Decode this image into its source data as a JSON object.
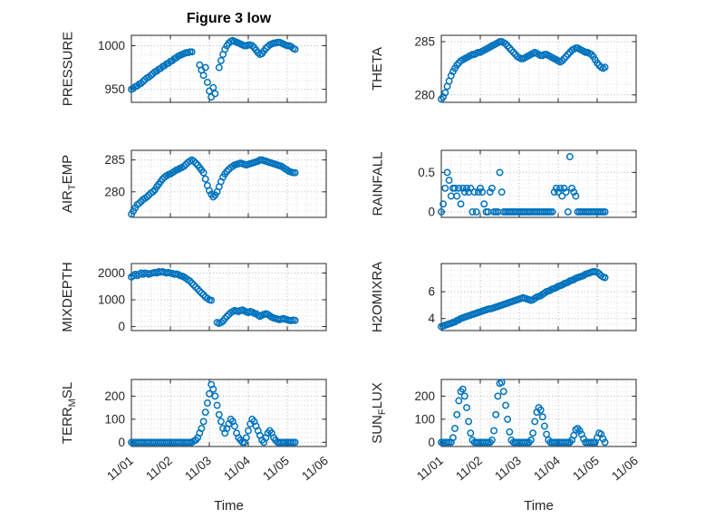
{
  "figure": {
    "title": "Figure 3 low",
    "xlabel": "Time",
    "colors": {
      "marker": "#0072BD",
      "axis": "#262626",
      "grid": "#b5b5b5",
      "minor_grid": "#dcdcdc"
    }
  },
  "x_axis": {
    "lim": [
      0,
      5
    ],
    "ticks": [
      0,
      1,
      2,
      3,
      4,
      5
    ],
    "labels": [
      "11/01",
      "11/02",
      "11/03",
      "11/04",
      "11/05",
      "11/06"
    ],
    "minor_step": 0.25
  },
  "chart_data": [
    {
      "type": "scatter",
      "name": "PRESSURE",
      "row": 0,
      "col": 0,
      "ylabel": {
        "pre": "PRESSURE",
        "sub": "",
        "post": ""
      },
      "ylim": [
        935,
        1012
      ],
      "yticks": [
        950,
        1000
      ],
      "ytick_labels": [
        "950",
        "1000"
      ],
      "yminor": 10,
      "t": [
        0,
        0.05,
        0.1,
        0.15,
        0.2,
        0.25,
        0.3,
        0.35,
        0.4,
        0.45,
        0.5,
        0.55,
        0.6,
        0.65,
        0.7,
        0.75,
        0.8,
        0.85,
        0.9,
        0.95,
        1,
        1.05,
        1.1,
        1.15,
        1.2,
        1.25,
        1.3,
        1.35,
        1.4,
        1.45,
        1.5,
        1.55,
        1.75,
        1.8,
        1.85,
        1.9,
        1.95,
        2,
        2.05,
        2.1,
        2.15,
        2.25,
        2.3,
        2.35,
        2.4,
        2.45,
        2.5,
        2.55,
        2.6,
        2.65,
        2.7,
        2.75,
        2.8,
        2.85,
        2.9,
        2.95,
        3,
        3.05,
        3.1,
        3.15,
        3.2,
        3.25,
        3.3,
        3.35,
        3.4,
        3.45,
        3.5,
        3.55,
        3.6,
        3.65,
        3.7,
        3.75,
        3.8,
        3.85,
        3.9,
        3.95,
        4,
        4.05,
        4.1,
        4.15,
        4.2
      ],
      "y": [
        950,
        951,
        953,
        954,
        956,
        957,
        959,
        961,
        963,
        964,
        966,
        968,
        970,
        971,
        973,
        974,
        976,
        977,
        979,
        980,
        982,
        983,
        985,
        986,
        988,
        989,
        990,
        991,
        992,
        992,
        993,
        993,
        978,
        972,
        966,
        975,
        958,
        948,
        941,
        952,
        945,
        975,
        983,
        990,
        996,
        1000,
        1003,
        1005,
        1006,
        1005,
        1004,
        1003,
        1002,
        1001,
        1000,
        1000,
        1001,
        1001,
        1000,
        998,
        995,
        992,
        990,
        991,
        994,
        997,
        999,
        1001,
        1002,
        1003,
        1003,
        1004,
        1004,
        1003,
        1002,
        1001,
        1000,
        1000,
        999,
        997,
        996
      ]
    },
    {
      "type": "scatter",
      "name": "THETA",
      "row": 0,
      "col": 1,
      "ylabel": {
        "pre": "THETA",
        "sub": "",
        "post": ""
      },
      "ylim": [
        279.3,
        285.6
      ],
      "yticks": [
        280,
        285
      ],
      "ytick_labels": [
        "280",
        "285"
      ],
      "yminor": 1,
      "t_start": 0,
      "t_step": 0.05,
      "y": [
        279.6,
        279.8,
        280.2,
        280.8,
        281.3,
        281.8,
        282.2,
        282.5,
        282.8,
        283,
        283.2,
        283.3,
        283.4,
        283.5,
        283.6,
        283.7,
        283.8,
        283.8,
        283.9,
        284,
        284,
        284.1,
        284.2,
        284.3,
        284.4,
        284.5,
        284.6,
        284.7,
        284.8,
        284.9,
        285,
        285,
        284.9,
        284.8,
        284.6,
        284.4,
        284.2,
        284,
        283.8,
        283.6,
        283.5,
        283.4,
        283.4,
        283.5,
        283.6,
        283.7,
        283.8,
        283.9,
        284,
        283.9,
        283.8,
        283.7,
        283.7,
        283.8,
        283.8,
        283.7,
        283.6,
        283.5,
        283.4,
        283.3,
        283.2,
        283.1,
        283.2,
        283.4,
        283.6,
        283.8,
        284,
        284.2,
        284.3,
        284.4,
        284.4,
        284.3,
        284.2,
        284.1,
        284,
        284,
        283.9,
        283.8,
        283.6,
        283.3,
        283,
        282.8,
        282.6,
        282.5,
        282.6
      ]
    },
    {
      "type": "scatter",
      "name": "AIR_TEMP",
      "row": 1,
      "col": 0,
      "ylabel": {
        "pre": "AIR",
        "sub": "T",
        "post": "EMP"
      },
      "ylim": [
        276,
        286.5
      ],
      "yticks": [
        280,
        285
      ],
      "ytick_labels": [
        "280",
        "285"
      ],
      "yminor": 1,
      "t_start": 0,
      "t_step": 0.05,
      "y": [
        276.5,
        277,
        277.5,
        278,
        278.2,
        278.5,
        278.8,
        279,
        279.2,
        279.5,
        279.8,
        280,
        280.3,
        280.8,
        281.2,
        281.6,
        282,
        282.3,
        282.5,
        282.7,
        282.8,
        283,
        283.2,
        283.4,
        283.5,
        283.7,
        283.8,
        284,
        284.3,
        284.6,
        284.8,
        285,
        284.8,
        284.5,
        284.2,
        283.8,
        283.4,
        283,
        282,
        281,
        280.2,
        279.6,
        279.2,
        279.5,
        280,
        280.8,
        281.6,
        282.3,
        282.8,
        283.2,
        283.5,
        283.8,
        284,
        284.2,
        284.3,
        284.4,
        284.5,
        284.4,
        284.3,
        284.2,
        284.3,
        284.4,
        284.5,
        284.6,
        284.7,
        284.8,
        285,
        285,
        284.9,
        284.8,
        284.7,
        284.6,
        284.5,
        284.4,
        284.3,
        284.2,
        284.1,
        284,
        283.8,
        283.6,
        283.4,
        283.2,
        283.1,
        283,
        283
      ]
    },
    {
      "type": "scatter",
      "name": "RAINFALL",
      "row": 1,
      "col": 1,
      "ylabel": {
        "pre": "RAINFALL",
        "sub": "",
        "post": ""
      },
      "ylim": [
        -0.07,
        0.78
      ],
      "yticks": [
        0,
        0.5
      ],
      "ytick_labels": [
        "0",
        "0.5"
      ],
      "yminor": 0.1,
      "t_start": 0,
      "t_step": 0.05,
      "y": [
        0,
        0.1,
        0.3,
        0.5,
        0.4,
        0.2,
        0.3,
        0.3,
        0.2,
        0.3,
        0.1,
        0.3,
        0.25,
        0.3,
        0.25,
        0.3,
        0,
        0.25,
        0,
        0.25,
        0.3,
        0.25,
        0.1,
        0,
        0,
        0.25,
        0.3,
        0,
        0,
        0,
        0.5,
        0.25,
        0,
        0,
        0,
        0,
        0,
        0,
        0,
        0,
        0,
        0,
        0,
        0,
        0,
        0,
        0,
        0,
        0,
        0,
        0,
        0,
        0,
        0,
        0,
        0,
        0,
        0,
        0.25,
        0.3,
        0.25,
        0.3,
        0.2,
        0.3,
        0.25,
        0,
        0.7,
        0.3,
        0.25,
        0.2,
        0,
        0,
        0,
        0,
        0,
        0,
        0,
        0,
        0,
        0,
        0,
        0,
        0,
        0,
        0
      ]
    },
    {
      "type": "scatter",
      "name": "MIXDEPTH",
      "row": 2,
      "col": 0,
      "ylabel": {
        "pre": "MIXDEPTH",
        "sub": "",
        "post": ""
      },
      "ylim": [
        -150,
        2350
      ],
      "yticks": [
        0,
        1000,
        2000
      ],
      "ytick_labels": [
        "0",
        "1000",
        "2000"
      ],
      "yminor": 200,
      "t": [
        0,
        0.05,
        0.1,
        0.15,
        0.2,
        0.25,
        0.3,
        0.35,
        0.4,
        0.45,
        0.5,
        0.55,
        0.6,
        0.65,
        0.7,
        0.75,
        0.8,
        0.85,
        0.9,
        0.95,
        1,
        1.05,
        1.1,
        1.15,
        1.2,
        1.25,
        1.3,
        1.35,
        1.4,
        1.45,
        1.5,
        1.55,
        1.6,
        1.65,
        1.7,
        1.75,
        1.8,
        1.85,
        1.9,
        1.95,
        2,
        2.05,
        2.2,
        2.25,
        2.3,
        2.35,
        2.4,
        2.45,
        2.5,
        2.55,
        2.6,
        2.65,
        2.7,
        2.75,
        2.8,
        2.85,
        2.9,
        2.95,
        3,
        3.05,
        3.1,
        3.15,
        3.2,
        3.25,
        3.3,
        3.35,
        3.4,
        3.45,
        3.5,
        3.55,
        3.6,
        3.65,
        3.7,
        3.75,
        3.8,
        3.85,
        3.9,
        3.95,
        4,
        4.05,
        4.1,
        4.15,
        4.2
      ],
      "y": [
        1850,
        1900,
        1950,
        1900,
        1950,
        2000,
        1950,
        2000,
        1980,
        1950,
        1980,
        2000,
        2020,
        2000,
        2050,
        2030,
        2050,
        2020,
        2000,
        2020,
        2000,
        1980,
        1950,
        1960,
        1940,
        1900,
        1880,
        1850,
        1800,
        1750,
        1700,
        1620,
        1550,
        1480,
        1400,
        1320,
        1250,
        1180,
        1100,
        1050,
        1000,
        980,
        150,
        120,
        150,
        200,
        300,
        380,
        450,
        520,
        560,
        600,
        580,
        560,
        600,
        620,
        580,
        550,
        520,
        560,
        540,
        500,
        480,
        420,
        380,
        420,
        450,
        480,
        450,
        400,
        350,
        320,
        300,
        280,
        260,
        280,
        300,
        280,
        250,
        230,
        220,
        240,
        230
      ]
    },
    {
      "type": "scatter",
      "name": "H2OMIXRA",
      "row": 2,
      "col": 1,
      "ylabel": {
        "pre": "H2OMIXRA",
        "sub": "",
        "post": ""
      },
      "ylim": [
        3.1,
        8.1
      ],
      "yticks": [
        4,
        6
      ],
      "ytick_labels": [
        "4",
        "6"
      ],
      "yminor": 0.4,
      "t_start": 0,
      "t_step": 0.05,
      "y": [
        3.4,
        3.45,
        3.5,
        3.55,
        3.6,
        3.65,
        3.7,
        3.75,
        3.85,
        3.9,
        4,
        4.05,
        4.1,
        4.15,
        4.2,
        4.25,
        4.3,
        4.35,
        4.4,
        4.45,
        4.5,
        4.55,
        4.6,
        4.65,
        4.7,
        4.72,
        4.75,
        4.8,
        4.85,
        4.9,
        4.95,
        5,
        5.05,
        5.1,
        5.15,
        5.2,
        5.25,
        5.3,
        5.35,
        5.4,
        5.45,
        5.5,
        5.55,
        5.5,
        5.45,
        5.4,
        5.35,
        5.4,
        5.5,
        5.6,
        5.65,
        5.7,
        5.8,
        5.9,
        6,
        6.05,
        6.1,
        6.2,
        6.25,
        6.3,
        6.4,
        6.45,
        6.5,
        6.6,
        6.65,
        6.7,
        6.8,
        6.85,
        6.9,
        7,
        7.05,
        7.1,
        7.15,
        7.2,
        7.3,
        7.35,
        7.4,
        7.45,
        7.5,
        7.5,
        7.45,
        7.35,
        7.2,
        7.1,
        7.05
      ]
    },
    {
      "type": "scatter",
      "name": "TERR_MSL",
      "row": 3,
      "col": 0,
      "ylabel": {
        "pre": "TERR",
        "sub": "M",
        "post": "SL"
      },
      "ylim": [
        -18,
        272
      ],
      "yticks": [
        0,
        100,
        200
      ],
      "ytick_labels": [
        "0",
        "100",
        "200"
      ],
      "yminor": 20,
      "t_start": 0,
      "t_step": 0.05,
      "y": [
        0,
        0,
        0,
        0,
        0,
        0,
        0,
        0,
        0,
        0,
        0,
        0,
        0,
        0,
        0,
        0,
        0,
        0,
        0,
        0,
        0,
        0,
        0,
        0,
        0,
        0,
        0,
        0,
        0,
        0,
        0,
        0,
        5,
        10,
        20,
        40,
        60,
        90,
        130,
        170,
        210,
        250,
        230,
        200,
        160,
        120,
        90,
        60,
        40,
        60,
        80,
        100,
        90,
        70,
        40,
        20,
        10,
        0,
        0,
        20,
        50,
        80,
        100,
        90,
        70,
        50,
        30,
        10,
        0,
        20,
        40,
        50,
        40,
        20,
        10,
        0,
        0,
        0,
        0,
        0,
        0,
        0,
        0,
        0,
        0
      ]
    },
    {
      "type": "scatter",
      "name": "SUN_FLUX",
      "row": 3,
      "col": 1,
      "ylabel": {
        "pre": "SUN",
        "sub": "F",
        "post": "LUX"
      },
      "ylim": [
        -18,
        272
      ],
      "yticks": [
        0,
        100,
        200
      ],
      "ytick_labels": [
        "0",
        "100",
        "200"
      ],
      "yminor": 20,
      "t_start": 0,
      "t_step": 0.05,
      "y": [
        0,
        0,
        0,
        0,
        0,
        0,
        20,
        60,
        120,
        180,
        220,
        230,
        200,
        150,
        90,
        40,
        10,
        0,
        0,
        0,
        0,
        0,
        0,
        0,
        0,
        0,
        10,
        50,
        120,
        200,
        255,
        260,
        220,
        160,
        100,
        45,
        10,
        0,
        0,
        0,
        0,
        0,
        0,
        0,
        0,
        0,
        10,
        40,
        90,
        130,
        150,
        140,
        110,
        70,
        35,
        10,
        0,
        0,
        0,
        0,
        0,
        0,
        0,
        0,
        0,
        0,
        0,
        10,
        30,
        55,
        60,
        50,
        35,
        15,
        0,
        0,
        0,
        0,
        0,
        0,
        20,
        40,
        35,
        15,
        0
      ]
    }
  ]
}
